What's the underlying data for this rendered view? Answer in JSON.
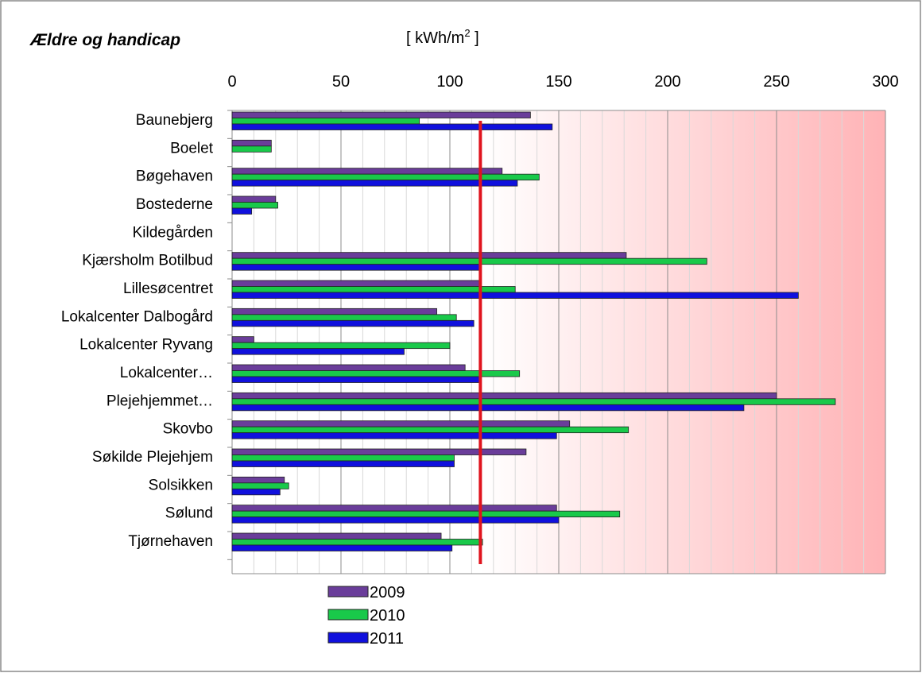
{
  "chart_data": {
    "type": "bar",
    "orientation": "horizontal",
    "title": "Ældre og handicap",
    "unit_label": "[ kWh/m",
    "unit_sup": "2",
    "unit_close": " ]",
    "xlim": [
      0,
      300
    ],
    "xticks": [
      0,
      50,
      100,
      150,
      200,
      250,
      300
    ],
    "grid": true,
    "legend_position": "bottom-left",
    "reference_line": {
      "value": 114,
      "color": "#e0141e"
    },
    "categories": [
      "Baunebjerg",
      "Boelet",
      "Bøgehaven",
      "Bostederne",
      "Kildegården",
      "Kjærsholm Botilbud",
      "Lillesøcentret",
      "Lokalcenter Dalbogård",
      "Lokalcenter Ryvang",
      "Lokalcenter…",
      "Plejehjemmet…",
      "Skovbo",
      "Søkilde Plejehjem",
      "Solsikken",
      "Sølund",
      "Tjørnehaven"
    ],
    "series": [
      {
        "name": "2009",
        "color": "#6a3d9a",
        "values": [
          137,
          18,
          124,
          20,
          0,
          181,
          114,
          94,
          10,
          107,
          250,
          155,
          135,
          24,
          149,
          96
        ]
      },
      {
        "name": "2010",
        "color": "#19c94a",
        "values": [
          86,
          18,
          141,
          21,
          0,
          218,
          130,
          103,
          100,
          132,
          277,
          182,
          102,
          26,
          178,
          115
        ]
      },
      {
        "name": "2011",
        "color": "#1010dd",
        "values": [
          147,
          0,
          131,
          9,
          0,
          114,
          260,
          111,
          79,
          114,
          235,
          149,
          102,
          22,
          150,
          101
        ]
      }
    ]
  }
}
